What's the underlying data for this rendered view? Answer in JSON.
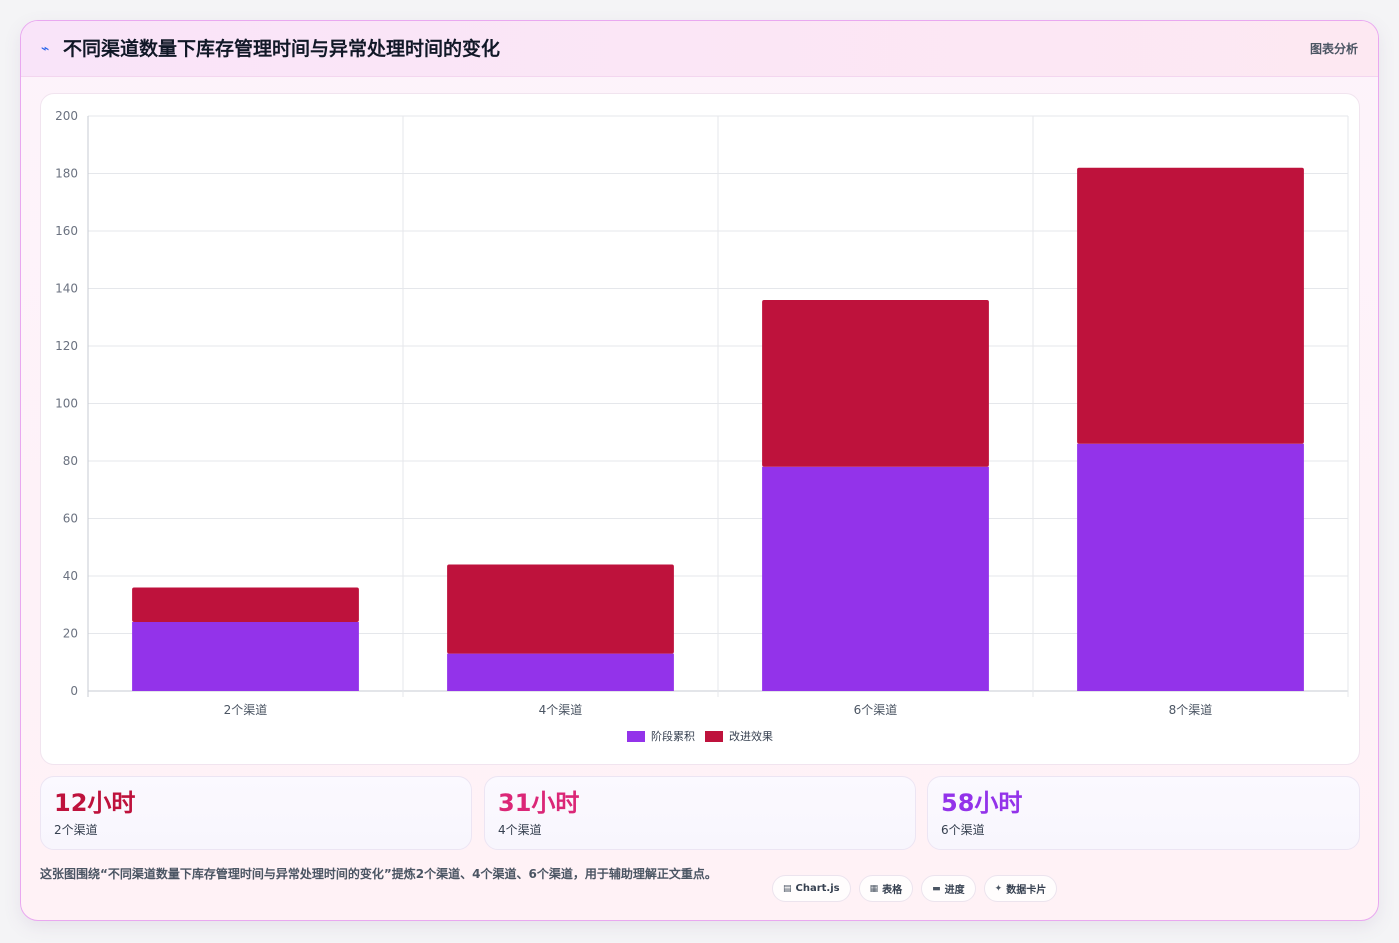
{
  "header": {
    "icon": "chart-line-icon",
    "title": "不同渠道数量下库存管理时间与异常处理时间的变化",
    "tag": "图表分析"
  },
  "chart_data": {
    "type": "bar",
    "stacked": true,
    "categories": [
      "2个渠道",
      "4个渠道",
      "6个渠道",
      "8个渠道"
    ],
    "series": [
      {
        "name": "阶段累积",
        "color": "#9333ea",
        "values": [
          24,
          13,
          78,
          86
        ]
      },
      {
        "name": "改进效果",
        "color": "#be123c",
        "values": [
          12,
          31,
          58,
          96
        ]
      }
    ],
    "ylim": [
      0,
      200
    ],
    "yticks": [
      0,
      20,
      40,
      60,
      80,
      100,
      120,
      140,
      160,
      180,
      200
    ],
    "grid": true,
    "legend_position": "bottom"
  },
  "stats": [
    {
      "value": "12小时",
      "label": "2个渠道",
      "color": "#be123c"
    },
    {
      "value": "31小时",
      "label": "4个渠道",
      "color": "#db2777"
    },
    {
      "value": "58小时",
      "label": "6个渠道",
      "color": "#9333ea"
    }
  ],
  "footer": {
    "text": "这张图围绕“不同渠道数量下库存管理时间与异常处理时间的变化”提炼2个渠道、4个渠道、6个渠道，用于辅助理解正文重点。",
    "chips": [
      {
        "icon": "table-icon",
        "glyph": "▤",
        "label": "Chart.js"
      },
      {
        "icon": "grid-icon",
        "glyph": "▦",
        "label": "表格"
      },
      {
        "icon": "progress-icon",
        "glyph": "▬",
        "label": "进度"
      },
      {
        "icon": "sparkle-icon",
        "glyph": "✦",
        "label": "数据卡片"
      }
    ]
  }
}
